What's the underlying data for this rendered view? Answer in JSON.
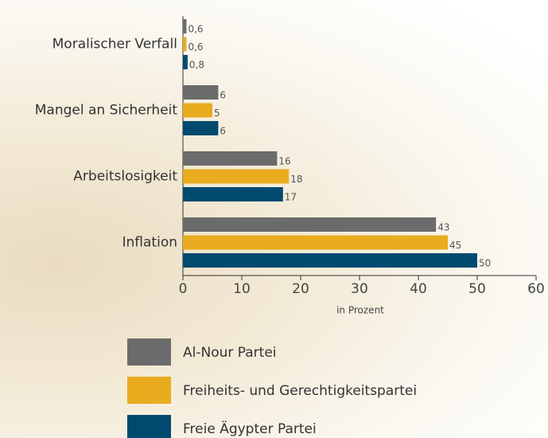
{
  "chart_data": {
    "type": "bar",
    "orientation": "horizontal",
    "categories": [
      "Moralischer Verfall",
      "Mangel an Sicherheit",
      "Arbeitslosigkeit",
      "Inflation"
    ],
    "series": [
      {
        "name": "Al-Nour Partei",
        "color": "#6b6b6b",
        "values": [
          0.6,
          6,
          16,
          43
        ],
        "value_labels": [
          "0,6",
          "6",
          "16",
          "43"
        ]
      },
      {
        "name": "Freiheits- und Gerechtigkeitspartei",
        "color": "#e8ac1e",
        "values": [
          0.6,
          5,
          18,
          45
        ],
        "value_labels": [
          "0,6",
          "5",
          "18",
          "45"
        ]
      },
      {
        "name": "Freie Ägypter Partei",
        "color": "#004a70",
        "values": [
          0.8,
          6,
          17,
          50
        ],
        "value_labels": [
          "0,8",
          "6",
          "17",
          "50"
        ]
      }
    ],
    "xlabel": "in Prozent",
    "xlim": [
      0,
      60
    ],
    "xticks": [
      0,
      10,
      20,
      30,
      40,
      50,
      60
    ],
    "legend": "bottom"
  }
}
